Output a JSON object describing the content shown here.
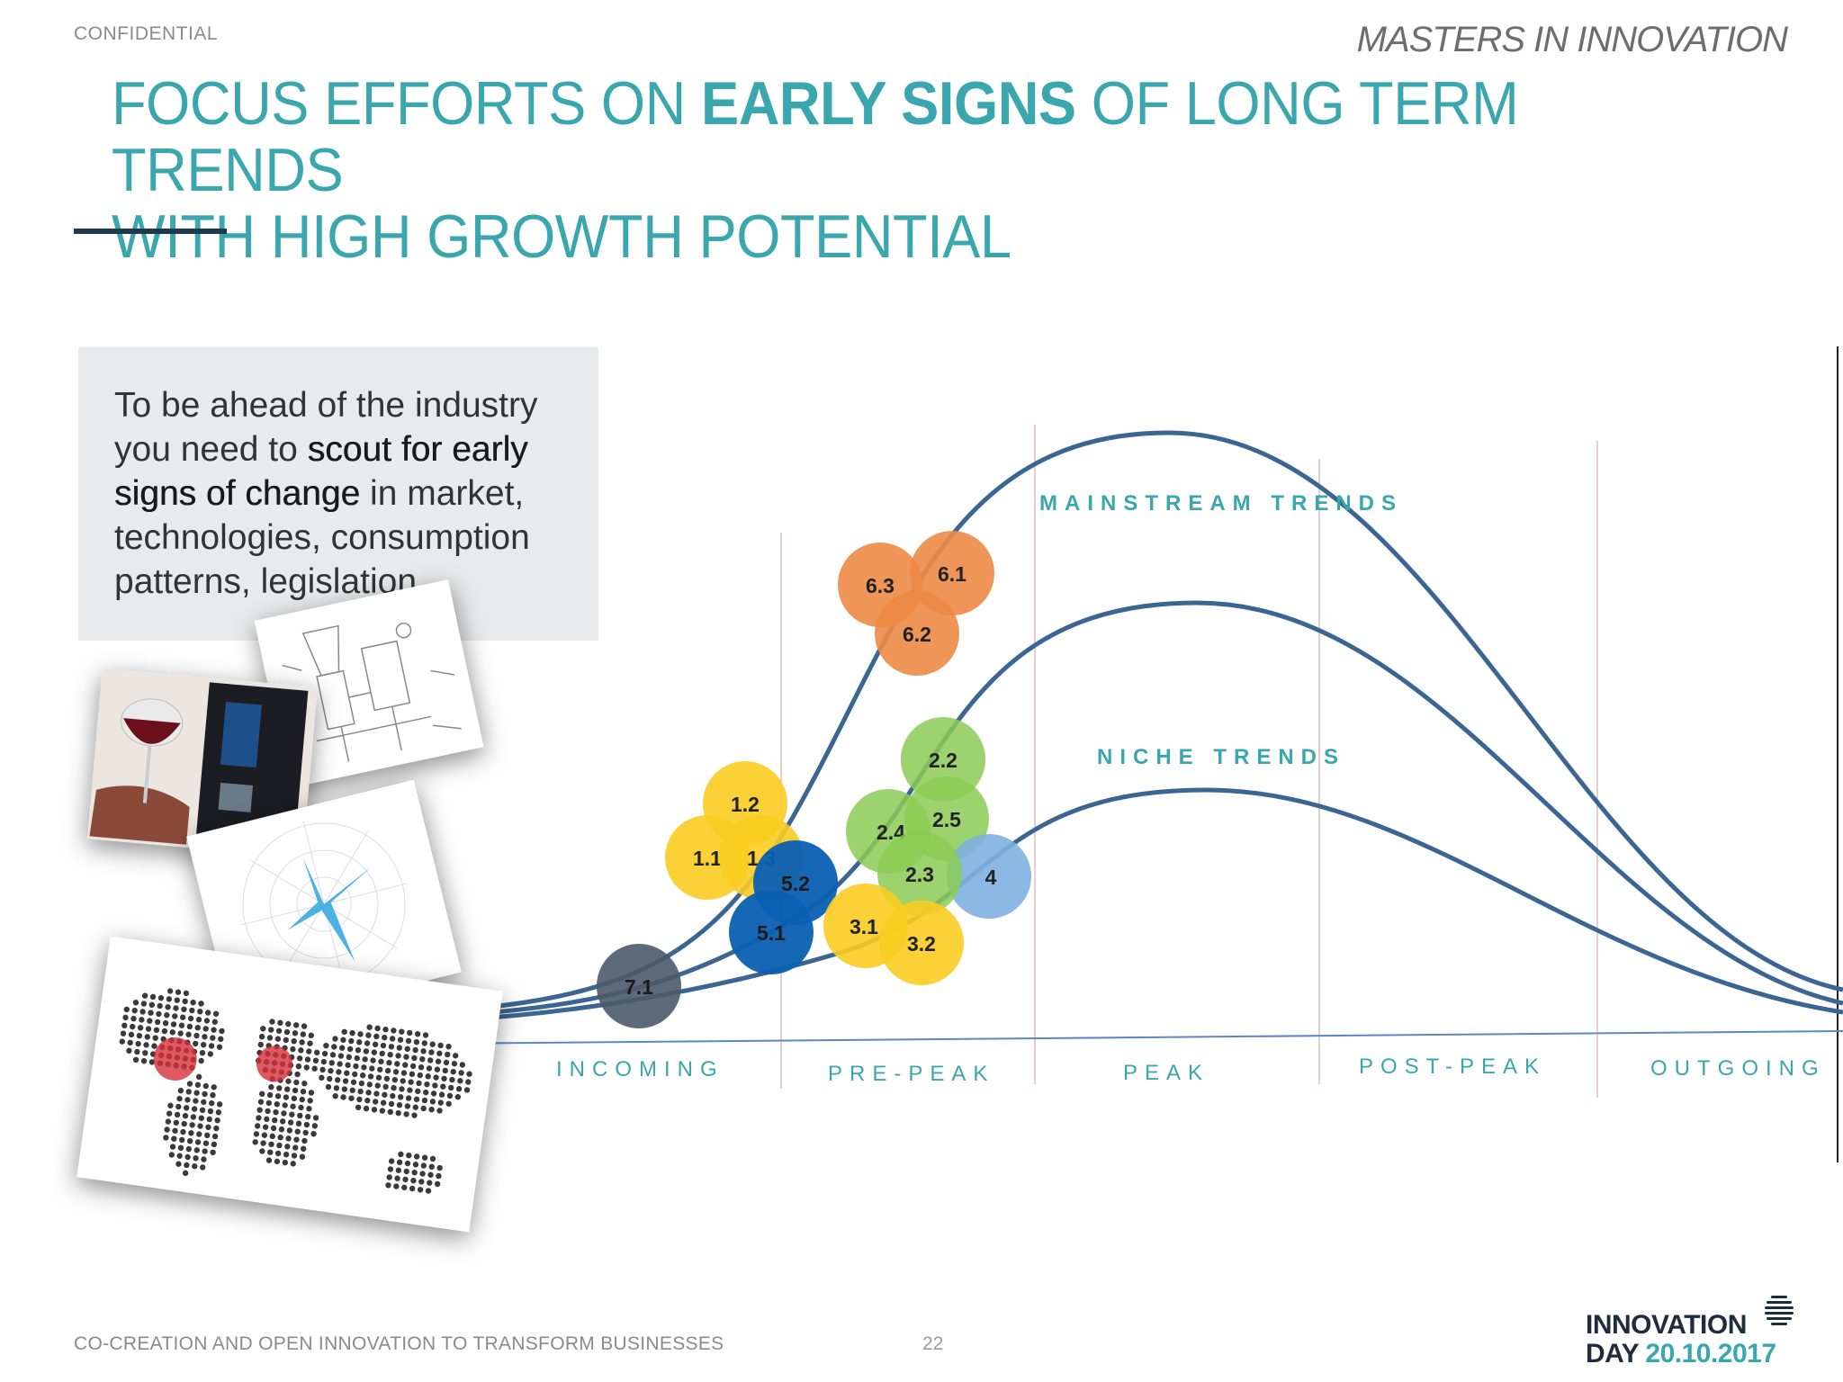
{
  "header": {
    "confidential": "CONFIDENTIAL",
    "brand": "MASTERS IN INNOVATION"
  },
  "title": {
    "part1": "FOCUS EFFORTS ON ",
    "bold": "EARLY SIGNS",
    "part2": " OF LONG TERM TRENDS",
    "line2": "WITH HIGH GROWTH POTENTIAL"
  },
  "callout": {
    "t1": "To be ahead of the industry you need to ",
    "b1": "scout for early signs of change",
    "t2": " in market, technologies, consumption patterns, legislation…"
  },
  "diagram": {
    "curve_labels": {
      "mainstream": "MAINSTREAM TRENDS",
      "niche": "NICHE TRENDS"
    },
    "phases": [
      "INCOMING",
      "PRE-PEAK",
      "PEAK",
      "POST-PEAK",
      "OUTGOING"
    ],
    "colors": {
      "curve": "#3b6592",
      "label": "#3aa6ad",
      "orange": "#ec8a45",
      "yellow": "#f9cc21",
      "green": "#8ccb55",
      "blue": "#0b5fb3",
      "lightblue": "#7fb1e0",
      "gray": "#4d5a6a"
    },
    "bubbles": [
      {
        "label": "6.3",
        "color": "orange"
      },
      {
        "label": "6.1",
        "color": "orange"
      },
      {
        "label": "6.2",
        "color": "orange"
      },
      {
        "label": "1.2",
        "color": "yellow"
      },
      {
        "label": "1.1",
        "color": "yellow"
      },
      {
        "label": "1.3",
        "color": "yellow"
      },
      {
        "label": "5.2",
        "color": "blue"
      },
      {
        "label": "5.1",
        "color": "blue"
      },
      {
        "label": "2.2",
        "color": "green"
      },
      {
        "label": "2.4",
        "color": "green"
      },
      {
        "label": "2.5",
        "color": "green"
      },
      {
        "label": "2.3",
        "color": "green"
      },
      {
        "label": "4",
        "color": "lightblue"
      },
      {
        "label": "3.1",
        "color": "yellow"
      },
      {
        "label": "3.2",
        "color": "yellow"
      },
      {
        "label": "7.1",
        "color": "gray"
      }
    ]
  },
  "footer": {
    "left": "CO-CREATION AND OPEN INNOVATION TO TRANSFORM BUSINESSES",
    "page": "22"
  },
  "logo": {
    "line1": "INNOVATION",
    "line2a": "DAY ",
    "date": "20.10.2017"
  }
}
